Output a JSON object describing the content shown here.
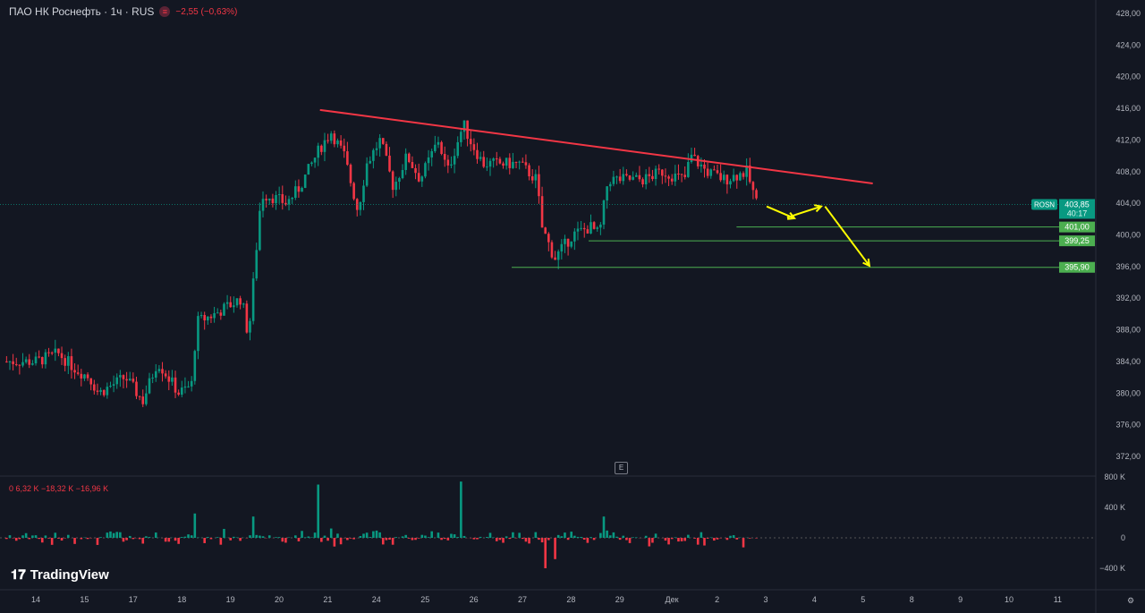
{
  "header": {
    "symbol": "ПАО НК Роснефть · 1ч · RUS",
    "change": "−2,55 (−0,63%)",
    "status_icon": "market-closed-icon"
  },
  "volume_legend": "0  6,32 K  −18,32 K  −16,96 K",
  "logo": "TradingView",
  "e_button": "E",
  "colors": {
    "up": "#089981",
    "down": "#f23645",
    "trend": "#f23645",
    "level": "#4caf50",
    "arrow": "#ffff00"
  },
  "chart_data": {
    "type": "candlestick",
    "title": "ПАО НК Роснефть · 1ч · RUS",
    "ylim": [
      370,
      429
    ],
    "y_ticks": [
      "428,00",
      "424,00",
      "420,00",
      "416,00",
      "412,00",
      "408,00",
      "404,00",
      "400,00",
      "396,00",
      "392,00",
      "388,00",
      "384,00",
      "380,00",
      "376,00",
      "372,00"
    ],
    "y_tick_values": [
      428,
      424,
      420,
      416,
      412,
      408,
      404,
      400,
      396,
      392,
      388,
      384,
      380,
      376,
      372
    ],
    "x_ticks": [
      "14",
      "15",
      "17",
      "18",
      "19",
      "20",
      "21",
      "24",
      "25",
      "26",
      "27",
      "28",
      "29",
      "Дек",
      "2",
      "3",
      "4",
      "5",
      "8",
      "9",
      "10",
      "11"
    ],
    "close_path": [
      [
        0,
        384
      ],
      [
        0.46,
        385
      ],
      [
        0.83,
        383
      ],
      [
        1.29,
        380
      ],
      [
        1.1,
        382
      ],
      [
        1.84,
        382
      ],
      [
        2.2,
        379
      ],
      [
        2.5,
        384
      ],
      [
        2.94,
        380
      ],
      [
        3.2,
        381
      ],
      [
        3.31,
        389
      ],
      [
        3.68,
        390
      ],
      [
        4.23,
        392
      ],
      [
        4.37,
        387
      ],
      [
        4.5,
        396
      ],
      [
        4.63,
        405
      ],
      [
        4.78,
        405
      ],
      [
        5.15,
        404
      ],
      [
        5.42,
        406
      ],
      [
        5.84,
        411
      ],
      [
        6.07,
        413
      ],
      [
        6.34,
        410
      ],
      [
        6.62,
        403
      ],
      [
        6.8,
        409
      ],
      [
        7.08,
        412
      ],
      [
        7.35,
        406
      ],
      [
        7.63,
        410
      ],
      [
        7.9,
        407
      ],
      [
        8.27,
        412
      ],
      [
        8.46,
        408
      ],
      [
        8.79,
        414
      ],
      [
        8.92,
        412
      ],
      [
        9.19,
        409
      ],
      [
        9.56,
        409
      ],
      [
        9.93,
        409
      ],
      [
        10.29,
        407
      ],
      [
        10.4,
        401
      ],
      [
        10.66,
        397
      ],
      [
        11.03,
        400
      ],
      [
        11.4,
        401
      ],
      [
        11.58,
        400
      ],
      [
        11.76,
        407
      ],
      [
        12.13,
        407
      ],
      [
        12.5,
        407
      ],
      [
        12.87,
        408
      ],
      [
        13.33,
        407
      ],
      [
        13.46,
        410
      ],
      [
        13.79,
        408
      ],
      [
        14.15,
        407
      ],
      [
        14.61,
        408
      ],
      [
        14.82,
        403.85
      ]
    ],
    "last_price": {
      "symbol": "ROSN",
      "price": "403,85",
      "countdown": "40:17",
      "value": 403.85
    },
    "trendline": {
      "from": [
        5.84,
        415.8
      ],
      "to": [
        17.2,
        406.5
      ]
    },
    "levels": [
      {
        "label": "401,00",
        "value": 401.0,
        "from_x": 14.4
      },
      {
        "label": "399,25",
        "value": 399.25,
        "from_x": 11.36
      },
      {
        "label": "395,90",
        "value": 395.9,
        "from_x": 9.78
      }
    ],
    "arrows": [
      [
        [
          15.02,
          403.6
        ],
        [
          15.59,
          402.1
        ]
      ],
      [
        [
          15.44,
          402.2
        ],
        [
          16.14,
          403.6
        ]
      ],
      [
        [
          16.22,
          403.6
        ],
        [
          17.13,
          396.1
        ]
      ]
    ],
    "volume": {
      "y_ticks": [
        "800 K",
        "400 K",
        "0",
        "−400 K"
      ],
      "y_tick_values": [
        800,
        400,
        0,
        -400
      ],
      "spikes": [
        [
          3.3,
          320
        ],
        [
          4.5,
          280
        ],
        [
          5.82,
          700
        ],
        [
          8.76,
          740
        ],
        [
          10.45,
          -400
        ],
        [
          10.66,
          -280
        ],
        [
          11.7,
          280
        ]
      ],
      "unit": "K"
    }
  }
}
